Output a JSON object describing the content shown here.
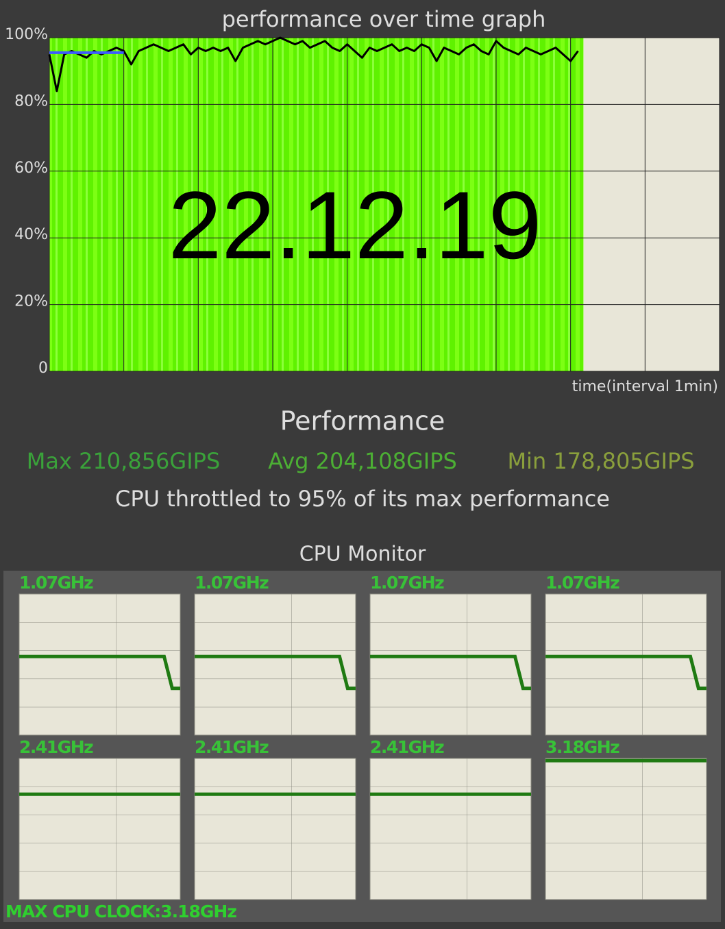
{
  "chart_data": [
    {
      "type": "line",
      "title": "performance over time graph",
      "xlabel": "time(interval 1min)",
      "annotation": "22.12.19",
      "x": [
        0,
        1,
        2,
        3,
        4,
        5,
        6,
        7,
        8,
        9,
        10,
        11,
        12,
        13,
        14,
        15,
        16,
        17,
        18,
        19,
        20,
        21,
        22,
        23,
        24,
        25,
        26,
        27,
        28,
        29,
        30,
        31,
        32,
        33,
        34,
        35,
        36,
        37,
        38,
        39,
        40,
        41,
        42,
        43,
        44,
        45,
        46,
        47,
        48,
        49,
        50,
        51,
        52,
        53,
        54,
        55,
        56,
        57,
        58,
        59,
        60,
        61,
        62,
        63,
        64,
        65,
        66,
        67,
        68,
        69,
        70,
        71
      ],
      "series": [
        {
          "color": "#000000",
          "values": [
            95,
            84,
            95,
            96,
            95,
            94,
            96,
            95,
            96,
            97,
            96,
            92,
            96,
            97,
            98,
            97,
            96,
            97,
            98,
            95,
            97,
            96,
            97,
            96,
            97,
            93,
            97,
            98,
            99,
            98,
            99,
            100,
            99,
            98,
            99,
            97,
            98,
            99,
            97,
            96,
            98,
            96,
            94,
            97,
            96,
            97,
            98,
            96,
            97,
            96,
            98,
            97,
            93,
            97,
            96,
            95,
            97,
            98,
            96,
            95,
            99,
            97,
            96,
            95,
            97,
            96,
            95,
            96,
            97,
            95,
            93,
            96
          ]
        },
        {
          "color": "#3d5cff",
          "x": [
            0,
            10
          ],
          "values": [
            95.5,
            95.5
          ]
        }
      ],
      "fill_color": "#62f500",
      "xlim": [
        0,
        90
      ],
      "xticks": [
        0,
        10,
        20,
        30,
        40,
        50,
        60,
        70,
        80,
        90
      ],
      "ylim": [
        0,
        100
      ],
      "yticks": [
        0,
        {
          "value": 20,
          "label": "20%"
        },
        {
          "value": 40,
          "label": "40%"
        },
        {
          "value": 60,
          "label": "60%"
        },
        {
          "value": 80,
          "label": "80%"
        },
        {
          "value": 100,
          "label": "100%"
        }
      ],
      "grid": true
    },
    {
      "type": "line",
      "title": "1.07GHz",
      "color": "#1f7a12",
      "x": [
        0,
        18,
        19,
        20
      ],
      "values": [
        1.8,
        1.8,
        1.07,
        1.07
      ],
      "xlim": [
        0,
        20
      ],
      "ylim": [
        0,
        3.23
      ]
    },
    {
      "type": "line",
      "title": "1.07GHz",
      "color": "#1f7a12",
      "x": [
        0,
        18,
        19,
        20
      ],
      "values": [
        1.8,
        1.8,
        1.07,
        1.07
      ],
      "xlim": [
        0,
        20
      ],
      "ylim": [
        0,
        3.23
      ]
    },
    {
      "type": "line",
      "title": "1.07GHz",
      "color": "#1f7a12",
      "x": [
        0,
        18,
        19,
        20
      ],
      "values": [
        1.8,
        1.8,
        1.07,
        1.07
      ],
      "xlim": [
        0,
        20
      ],
      "ylim": [
        0,
        3.23
      ]
    },
    {
      "type": "line",
      "title": "1.07GHz",
      "color": "#1f7a12",
      "x": [
        0,
        18,
        19,
        20
      ],
      "values": [
        1.8,
        1.8,
        1.07,
        1.07
      ],
      "xlim": [
        0,
        20
      ],
      "ylim": [
        0,
        3.23
      ]
    },
    {
      "type": "line",
      "title": "2.41GHz",
      "color": "#1f7a12",
      "x": [
        0,
        20
      ],
      "values": [
        2.41,
        2.41
      ],
      "xlim": [
        0,
        20
      ],
      "ylim": [
        0,
        3.23
      ]
    },
    {
      "type": "line",
      "title": "2.41GHz",
      "color": "#1f7a12",
      "x": [
        0,
        20
      ],
      "values": [
        2.41,
        2.41
      ],
      "xlim": [
        0,
        20
      ],
      "ylim": [
        0,
        3.23
      ]
    },
    {
      "type": "line",
      "title": "2.41GHz",
      "color": "#1f7a12",
      "x": [
        0,
        20
      ],
      "values": [
        2.41,
        2.41
      ],
      "xlim": [
        0,
        20
      ],
      "ylim": [
        0,
        3.23
      ]
    },
    {
      "type": "line",
      "title": "3.18GHz",
      "color": "#1f7a12",
      "x": [
        0,
        20
      ],
      "values": [
        3.18,
        3.18
      ],
      "xlim": [
        0,
        20
      ],
      "ylim": [
        0,
        3.23
      ]
    }
  ],
  "performance": {
    "title": "Performance",
    "max": "Max 210,856GIPS",
    "avg": "Avg 204,108GIPS",
    "min": "Min 178,805GIPS",
    "throttle": "CPU throttled to 95% of its max performance"
  },
  "cpu_monitor": {
    "title": "CPU Monitor",
    "max_clock": "MAX CPU CLOCK:3.18GHz"
  }
}
